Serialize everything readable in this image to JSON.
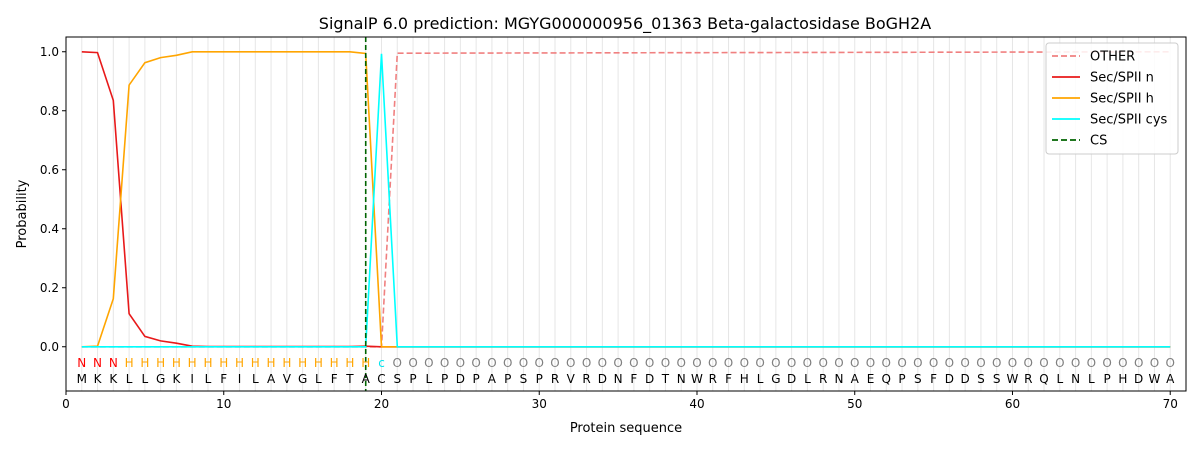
{
  "chart_data": {
    "type": "line",
    "title": "SignalP 6.0 prediction: MGYG000000956_01363 Beta-galactosidase BoGH2A",
    "xlabel": "Protein sequence",
    "ylabel": "Probability",
    "xlim": [
      0,
      71
    ],
    "ylim": [
      -0.15,
      1.05
    ],
    "xticks": [
      0,
      10,
      20,
      30,
      40,
      50,
      60,
      70
    ],
    "yticks": [
      0.0,
      0.2,
      0.4,
      0.6,
      0.8,
      1.0
    ],
    "ytick_labels": [
      "0.0",
      "0.2",
      "0.4",
      "0.6",
      "0.8",
      "1.0"
    ],
    "grid": "vertical lines at each residue",
    "legend_position": "top-right",
    "sequence": "MKKLLGKILFILAVGLFTACSPLPDPAPSPRVRDNFDTNWRFHLGDLRNAEQPSFDDSSWRQLNLPHDWA",
    "labels": "NNNHHHHHHHHHHHHHHHHcOOOOOOOOOOOOOOOOOOOOOOOOOOOOOOOOOOOOOOOOOOOOOOOOOO",
    "label_colors": {
      "N": "#ff0000",
      "H": "#ffa500",
      "c": "#00e5ee",
      "O": "#808080"
    },
    "series": [
      {
        "name": "OTHER",
        "color": "#f08080",
        "dash": "dashed",
        "x": [
          1,
          19,
          20,
          21,
          70
        ],
        "y": [
          0.0,
          0.0,
          0.0,
          0.995,
          1.0
        ]
      },
      {
        "name": "Sec/SPII n",
        "color": "#e8191a",
        "dash": "solid",
        "x": [
          1,
          2,
          3,
          4,
          5,
          6,
          7,
          8,
          9,
          18,
          19,
          20,
          70
        ],
        "y": [
          1.0,
          0.997,
          0.835,
          0.112,
          0.035,
          0.02,
          0.012,
          0.002,
          0.001,
          0.001,
          0.002,
          0.0,
          0.0
        ]
      },
      {
        "name": "Sec/SPII h",
        "color": "#ffa500",
        "dash": "solid",
        "x": [
          1,
          2,
          3,
          4,
          5,
          6,
          7,
          8,
          9,
          17,
          18,
          19,
          20,
          70
        ],
        "y": [
          0.0,
          0.002,
          0.163,
          0.887,
          0.963,
          0.98,
          0.988,
          1.0,
          1.0,
          1.0,
          1.0,
          0.994,
          0.0,
          0.0
        ]
      },
      {
        "name": "Sec/SPII cys",
        "color": "#00ffff",
        "dash": "solid",
        "x": [
          1,
          19,
          20,
          21,
          70
        ],
        "y": [
          0.0,
          0.0,
          0.993,
          0.0,
          0.0
        ]
      }
    ],
    "cleavage_site": {
      "name": "CS",
      "x": 19,
      "color": "#006400",
      "dash": "dashed"
    }
  }
}
